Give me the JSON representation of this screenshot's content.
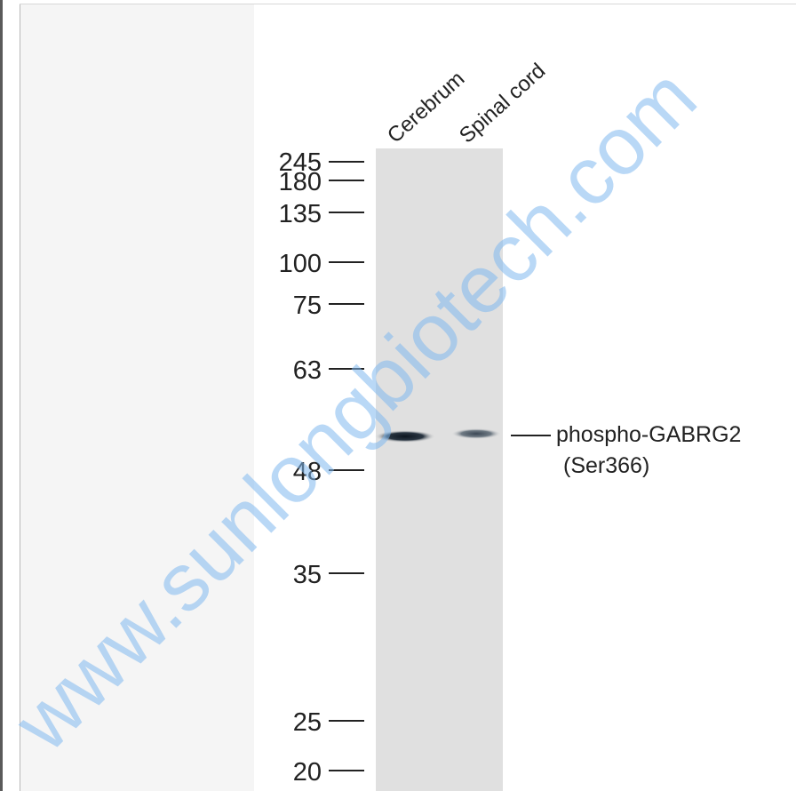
{
  "blot": {
    "lanes": [
      "Cerebrum",
      "Spinal cord"
    ],
    "markers": [
      "245",
      "180",
      "135",
      "100",
      "75",
      "63",
      "48",
      "35",
      "25",
      "20"
    ],
    "target_line1": "phospho-GABRG2",
    "target_line2": "(Ser366)"
  },
  "watermark": "www.sunlongbiotech.com",
  "colors": {
    "membrane": "#e0e0e0",
    "band": "#1e2a36",
    "watermark": "#7fb8ee"
  }
}
